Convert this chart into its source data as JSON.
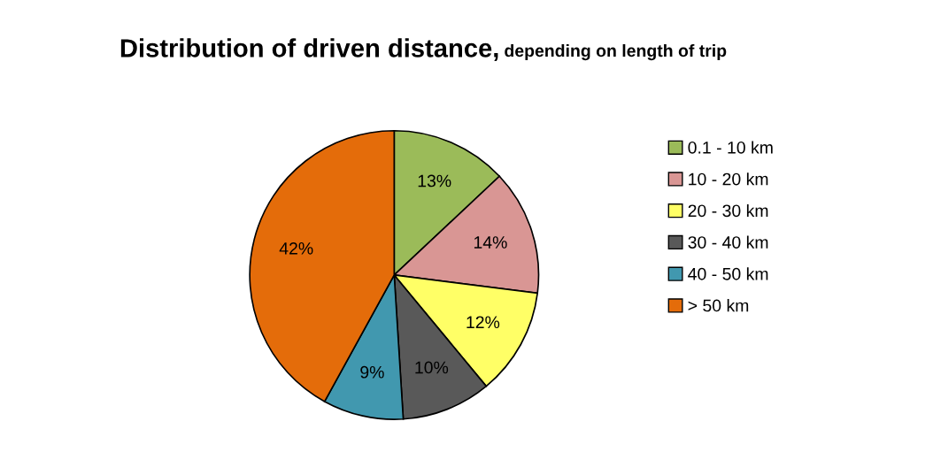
{
  "chart_data": {
    "type": "pie",
    "title": "Distribution of driven distance,",
    "subtitle": "depending on length of trip",
    "categories": [
      "0.1 - 10 km",
      "10 - 20 km",
      "20 - 30 km",
      "30 - 40 km",
      "40 - 50 km",
      "> 50 km"
    ],
    "values": [
      13,
      14,
      12,
      10,
      9,
      42
    ],
    "colors": [
      "#9bbb59",
      "#d99694",
      "#ffff66",
      "#595959",
      "#4198af",
      "#e46c0a"
    ],
    "value_labels": [
      "13%",
      "14%",
      "12%",
      "10%",
      "9%",
      "42%"
    ],
    "legend": "right"
  }
}
